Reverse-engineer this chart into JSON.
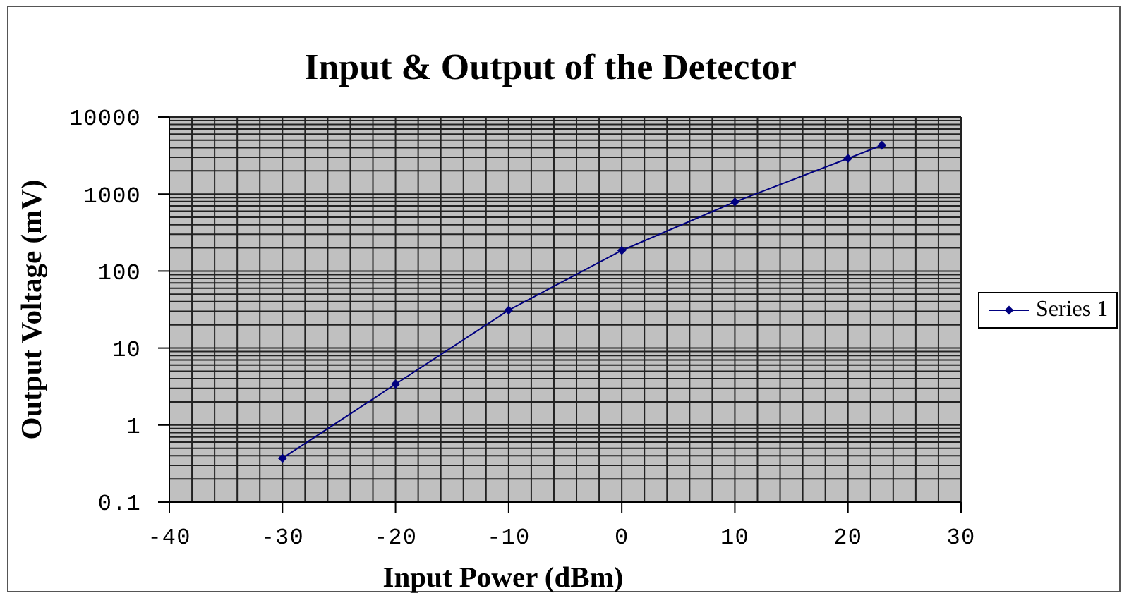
{
  "chart_data": {
    "type": "line",
    "title": "Input & Output of the Detector",
    "xlabel": "Input Power (dBm)",
    "ylabel": "Output Voltage (mV)",
    "x": [
      -30,
      -20,
      -10,
      0,
      10,
      20,
      23
    ],
    "series": [
      {
        "name": "Series 1",
        "color": "#000080",
        "values": [
          0.37,
          3.4,
          31,
          185,
          790,
          2900,
          4300
        ]
      }
    ],
    "xlim": [
      -40,
      30
    ],
    "xticks": [
      -40,
      -30,
      -20,
      -10,
      0,
      10,
      20,
      30
    ],
    "ylim": [
      0.1,
      10000
    ],
    "yticks": [
      0.1,
      1,
      10,
      100,
      1000,
      10000
    ],
    "log": "y",
    "grid": true,
    "legend": "right",
    "marker": "diamond",
    "line_style": "solid"
  }
}
